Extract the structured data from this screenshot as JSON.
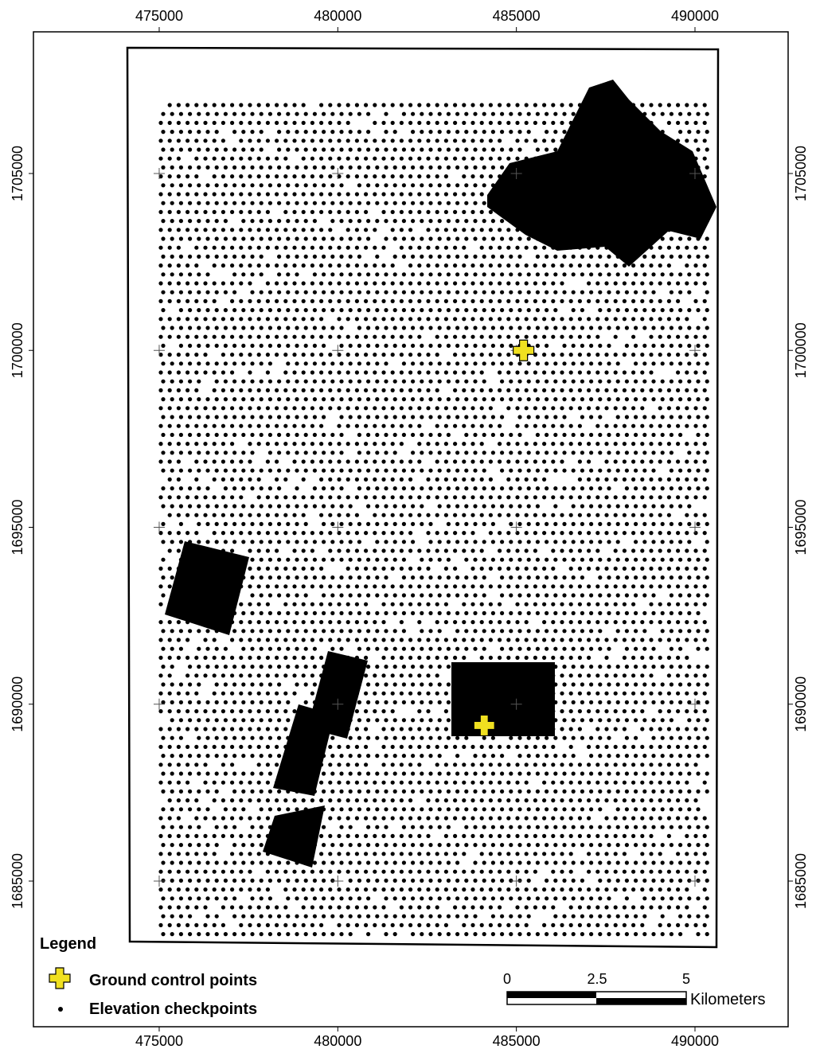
{
  "map": {
    "xlim": [
      471479,
      492608
    ],
    "ylim": [
      1680883,
      1709004
    ],
    "xticks": [
      475000,
      480000,
      485000,
      490000
    ],
    "yticks": [
      1705000,
      1700000,
      1695000,
      1690000,
      1685000
    ],
    "ground_control_points": [
      {
        "x": 485200,
        "y": 1700000
      },
      {
        "x": 484100,
        "y": 1689400
      }
    ],
    "legend": {
      "title": "Legend",
      "items": [
        "Ground control points",
        "Elevation checkpoints"
      ]
    },
    "scale_bar": {
      "labels": [
        "0",
        "2.5",
        "5"
      ],
      "unit": "Kilometers"
    }
  }
}
